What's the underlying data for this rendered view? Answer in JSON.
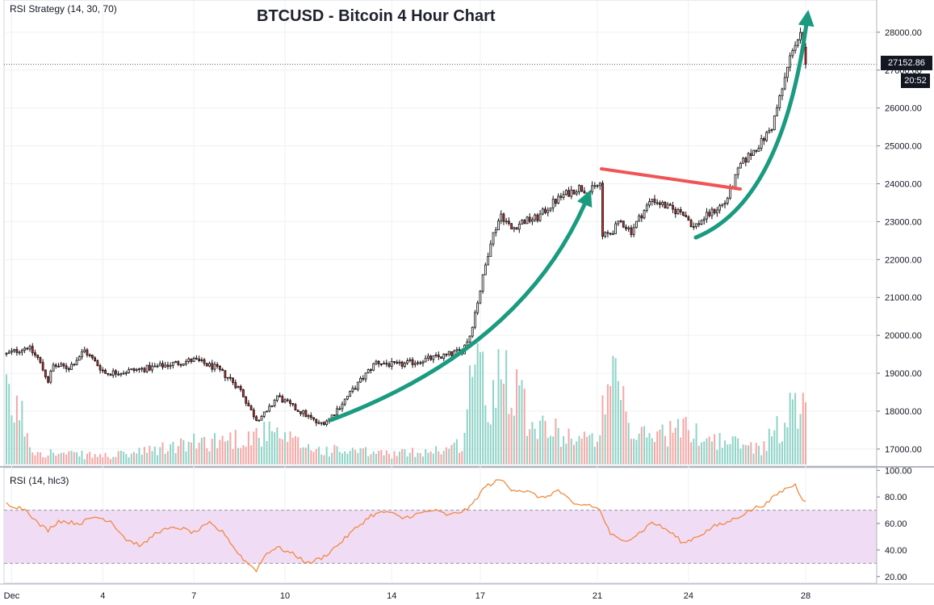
{
  "header": {
    "study_label": "RSI Strategy (14, 30, 70)",
    "title": "BTCUSD - Bitcoin 4 Hour Chart"
  },
  "rsi_panel": {
    "label": "RSI (14, hlc3)"
  },
  "price_axis": {
    "last_price": "27152.86",
    "countdown": "20:52"
  },
  "colors": {
    "up": "#ffffff",
    "down": "#e0282e",
    "vol_up": "#8fd3c7",
    "vol_down": "#f4a7a5",
    "arrow": "#1a9b7f",
    "resistance": "#f05454",
    "rsi_line": "#f08a3e",
    "rsi_band": "#f1dcf6"
  },
  "chart_data": [
    {
      "type": "candlestick",
      "title": "BTCUSD - Bitcoin 4 Hour Chart",
      "x_tick_labels": [
        "Dec",
        "4",
        "7",
        "10",
        "14",
        "17",
        "21",
        "24",
        "28"
      ],
      "y_tick_labels": [
        "17000.00",
        "18000.00",
        "19000.00",
        "20000.00",
        "21000.00",
        "22000.00",
        "23000.00",
        "24000.00",
        "25000.00",
        "26000.00",
        "27000.00",
        "28000.00"
      ],
      "ylim": [
        16550,
        28850
      ],
      "last_price": 27152.86,
      "close_anchors": [
        [
          0,
          19500
        ],
        [
          8,
          19700
        ],
        [
          12,
          19400
        ],
        [
          16,
          18800
        ],
        [
          18,
          19200
        ],
        [
          24,
          19150
        ],
        [
          30,
          19600
        ],
        [
          38,
          19000
        ],
        [
          46,
          19050
        ],
        [
          56,
          19150
        ],
        [
          64,
          19250
        ],
        [
          72,
          19350
        ],
        [
          80,
          19150
        ],
        [
          86,
          18850
        ],
        [
          90,
          18550
        ],
        [
          94,
          18000
        ],
        [
          96,
          17800
        ],
        [
          100,
          17950
        ],
        [
          104,
          18400
        ],
        [
          110,
          18100
        ],
        [
          114,
          17950
        ],
        [
          120,
          17650
        ],
        [
          124,
          17800
        ],
        [
          130,
          18300
        ],
        [
          136,
          18800
        ],
        [
          142,
          19300
        ],
        [
          150,
          19200
        ],
        [
          160,
          19350
        ],
        [
          168,
          19450
        ],
        [
          175,
          19600
        ],
        [
          178,
          20000
        ],
        [
          182,
          21200
        ],
        [
          186,
          22500
        ],
        [
          190,
          23200
        ],
        [
          194,
          22800
        ],
        [
          198,
          23000
        ],
        [
          204,
          23100
        ],
        [
          210,
          23500
        ],
        [
          214,
          23700
        ],
        [
          220,
          23900
        ],
        [
          224,
          23800
        ],
        [
          228,
          24000
        ],
        [
          229,
          22600
        ],
        [
          232,
          22700
        ],
        [
          236,
          23000
        ],
        [
          240,
          22750
        ],
        [
          244,
          23200
        ],
        [
          248,
          23600
        ],
        [
          252,
          23450
        ],
        [
          256,
          23300
        ],
        [
          260,
          23250
        ],
        [
          264,
          22850
        ],
        [
          268,
          23100
        ],
        [
          272,
          23300
        ],
        [
          276,
          23500
        ],
        [
          278,
          23800
        ],
        [
          282,
          24500
        ],
        [
          286,
          24800
        ],
        [
          290,
          25100
        ],
        [
          294,
          25500
        ],
        [
          298,
          26500
        ],
        [
          302,
          27600
        ],
        [
          305,
          27900
        ],
        [
          307,
          27150
        ]
      ],
      "volume_anchors": [
        [
          0,
          1500
        ],
        [
          6,
          1150
        ],
        [
          10,
          350
        ],
        [
          20,
          250
        ],
        [
          40,
          200
        ],
        [
          55,
          320
        ],
        [
          75,
          550
        ],
        [
          90,
          640
        ],
        [
          100,
          750
        ],
        [
          108,
          580
        ],
        [
          120,
          350
        ],
        [
          150,
          250
        ],
        [
          172,
          400
        ],
        [
          176,
          600
        ],
        [
          180,
          3400
        ],
        [
          182,
          2500
        ],
        [
          184,
          1400
        ],
        [
          186,
          1150
        ],
        [
          190,
          3050
        ],
        [
          193,
          2100
        ],
        [
          196,
          2150
        ],
        [
          200,
          1200
        ],
        [
          210,
          800
        ],
        [
          225,
          550
        ],
        [
          234,
          2000
        ],
        [
          240,
          650
        ],
        [
          260,
          850
        ],
        [
          275,
          550
        ],
        [
          290,
          400
        ],
        [
          300,
          1150
        ],
        [
          306,
          1650
        ]
      ],
      "volume_units": "relative"
    },
    {
      "type": "line",
      "series": [
        {
          "values_anchors": [
            [
              0,
              75
            ],
            [
              8,
              70
            ],
            [
              12,
              60
            ],
            [
              16,
              55
            ],
            [
              20,
              62
            ],
            [
              28,
              60
            ],
            [
              34,
              65
            ],
            [
              40,
              62
            ],
            [
              46,
              48
            ],
            [
              52,
              43
            ],
            [
              58,
              54
            ],
            [
              66,
              57
            ],
            [
              72,
              53
            ],
            [
              78,
              60
            ],
            [
              84,
              52
            ],
            [
              88,
              40
            ],
            [
              92,
              31
            ],
            [
              96,
              25
            ],
            [
              100,
              38
            ],
            [
              104,
              42
            ],
            [
              110,
              37
            ],
            [
              116,
              30
            ],
            [
              122,
              35
            ],
            [
              128,
              45
            ],
            [
              134,
              56
            ],
            [
              140,
              66
            ],
            [
              146,
              69
            ],
            [
              152,
              64
            ],
            [
              158,
              67
            ],
            [
              164,
              70
            ],
            [
              170,
              66
            ],
            [
              176,
              70
            ],
            [
              178,
              72
            ],
            [
              184,
              88
            ],
            [
              190,
              93
            ],
            [
              194,
              86
            ],
            [
              200,
              84
            ],
            [
              206,
              79
            ],
            [
              212,
              85
            ],
            [
              218,
              74
            ],
            [
              224,
              74
            ],
            [
              228,
              70
            ],
            [
              232,
              52
            ],
            [
              236,
              47
            ],
            [
              240,
              49
            ],
            [
              244,
              54
            ],
            [
              248,
              61
            ],
            [
              252,
              57
            ],
            [
              256,
              52
            ],
            [
              260,
              45
            ],
            [
              264,
              49
            ],
            [
              268,
              53
            ],
            [
              272,
              58
            ],
            [
              276,
              60
            ],
            [
              280,
              64
            ],
            [
              284,
              68
            ],
            [
              288,
              72
            ],
            [
              292,
              75
            ],
            [
              296,
              82
            ],
            [
              300,
              87
            ],
            [
              303,
              89
            ],
            [
              306,
              78
            ]
          ]
        }
      ],
      "y_tick_labels": [
        "20.00",
        "40.00",
        "60.00",
        "80.00",
        "100.00"
      ],
      "ylim": [
        15,
        102
      ],
      "band": [
        30,
        70
      ]
    }
  ]
}
